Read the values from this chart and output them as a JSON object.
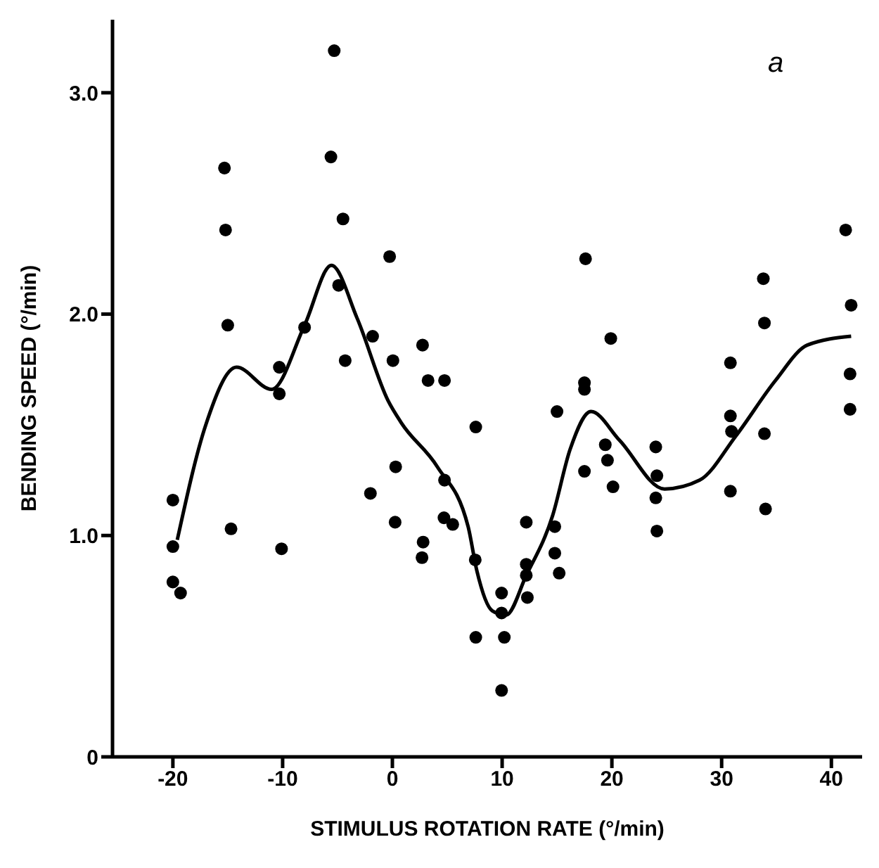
{
  "chart_data": {
    "type": "scatter",
    "xlabel": "STIMULUS ROTATION RATE (°/min)",
    "ylabel": "BENDING SPEED (°/min)",
    "annotations": [
      "a"
    ],
    "xlim": [
      -25.5,
      42.8
    ],
    "xticks": [
      -20,
      -10,
      0,
      10,
      20,
      30,
      40
    ],
    "ylim": [
      0,
      3.33
    ],
    "yticks": [
      0,
      {
        "value": 1,
        "label": "1.0"
      },
      {
        "value": 2,
        "label": "2.0"
      },
      {
        "value": 3,
        "label": "3.0"
      }
    ],
    "series": [
      {
        "marker": "circle",
        "color": "#000000",
        "x": [
          -20,
          -20,
          -20,
          -19.3,
          -14.7,
          -10.1,
          -10.3,
          -2,
          0.3,
          0.25,
          2.8,
          2.7,
          4.75,
          4.7,
          5.5,
          7.6,
          7.55,
          7.6,
          3.25,
          4.75,
          -5.3,
          -15.3,
          -5.6,
          -15.2,
          -4.5,
          -0.25,
          -15,
          -4.9,
          -8,
          -1.8,
          -10.3,
          -4.3,
          0.05,
          2.75,
          17.6,
          19.9,
          17.5,
          17.5,
          41.3,
          33.8,
          41.8,
          33.9,
          30.8,
          41.7,
          41.7,
          15,
          19.4,
          19.6,
          17.5,
          20.1,
          24,
          24.1,
          24,
          24.1,
          30.8,
          30.9,
          30.8,
          33.9,
          34,
          12.2,
          14.8,
          14.8,
          15.2,
          12.2,
          12.2,
          12.3,
          9.95,
          9.95,
          10.2,
          9.95
        ],
        "values": [
          1.16,
          0.95,
          0.79,
          0.74,
          1.03,
          0.94,
          1.64,
          1.19,
          1.31,
          1.06,
          0.97,
          0.9,
          1.25,
          1.08,
          1.05,
          1.49,
          0.89,
          0.54,
          1.7,
          1.7,
          3.19,
          2.66,
          2.71,
          2.38,
          2.43,
          2.26,
          1.95,
          2.13,
          1.94,
          1.9,
          1.76,
          1.79,
          1.79,
          1.86,
          2.25,
          1.89,
          1.69,
          1.66,
          2.38,
          2.16,
          2.04,
          1.96,
          1.78,
          1.73,
          1.57,
          1.56,
          1.41,
          1.34,
          1.29,
          1.22,
          1.4,
          1.27,
          1.17,
          1.02,
          1.54,
          1.47,
          1.2,
          1.46,
          1.12,
          1.06,
          1.04,
          0.92,
          0.83,
          0.87,
          0.82,
          0.72,
          0.74,
          0.65,
          0.54,
          0.3
        ]
      },
      {
        "type": "line",
        "line_style": "solid",
        "color": "#000000",
        "x": [
          -19.6,
          -17,
          -14.2,
          -11,
          -8,
          -5.55,
          -3.2,
          -0.4,
          0.8,
          4.1,
          6.9,
          7.7,
          9.1,
          10.35,
          12.2,
          14.6,
          16.2,
          18.1,
          20.7,
          24.8,
          28,
          31.3,
          34.9,
          37.8,
          41.8
        ],
        "values": [
          0.98,
          1.5,
          1.76,
          1.66,
          1.95,
          2.22,
          1.98,
          1.61,
          1.51,
          1.31,
          1.04,
          0.84,
          0.66,
          0.64,
          0.82,
          1.09,
          1.39,
          1.56,
          1.43,
          1.21,
          1.25,
          1.45,
          1.7,
          1.86,
          1.9
        ]
      }
    ]
  }
}
